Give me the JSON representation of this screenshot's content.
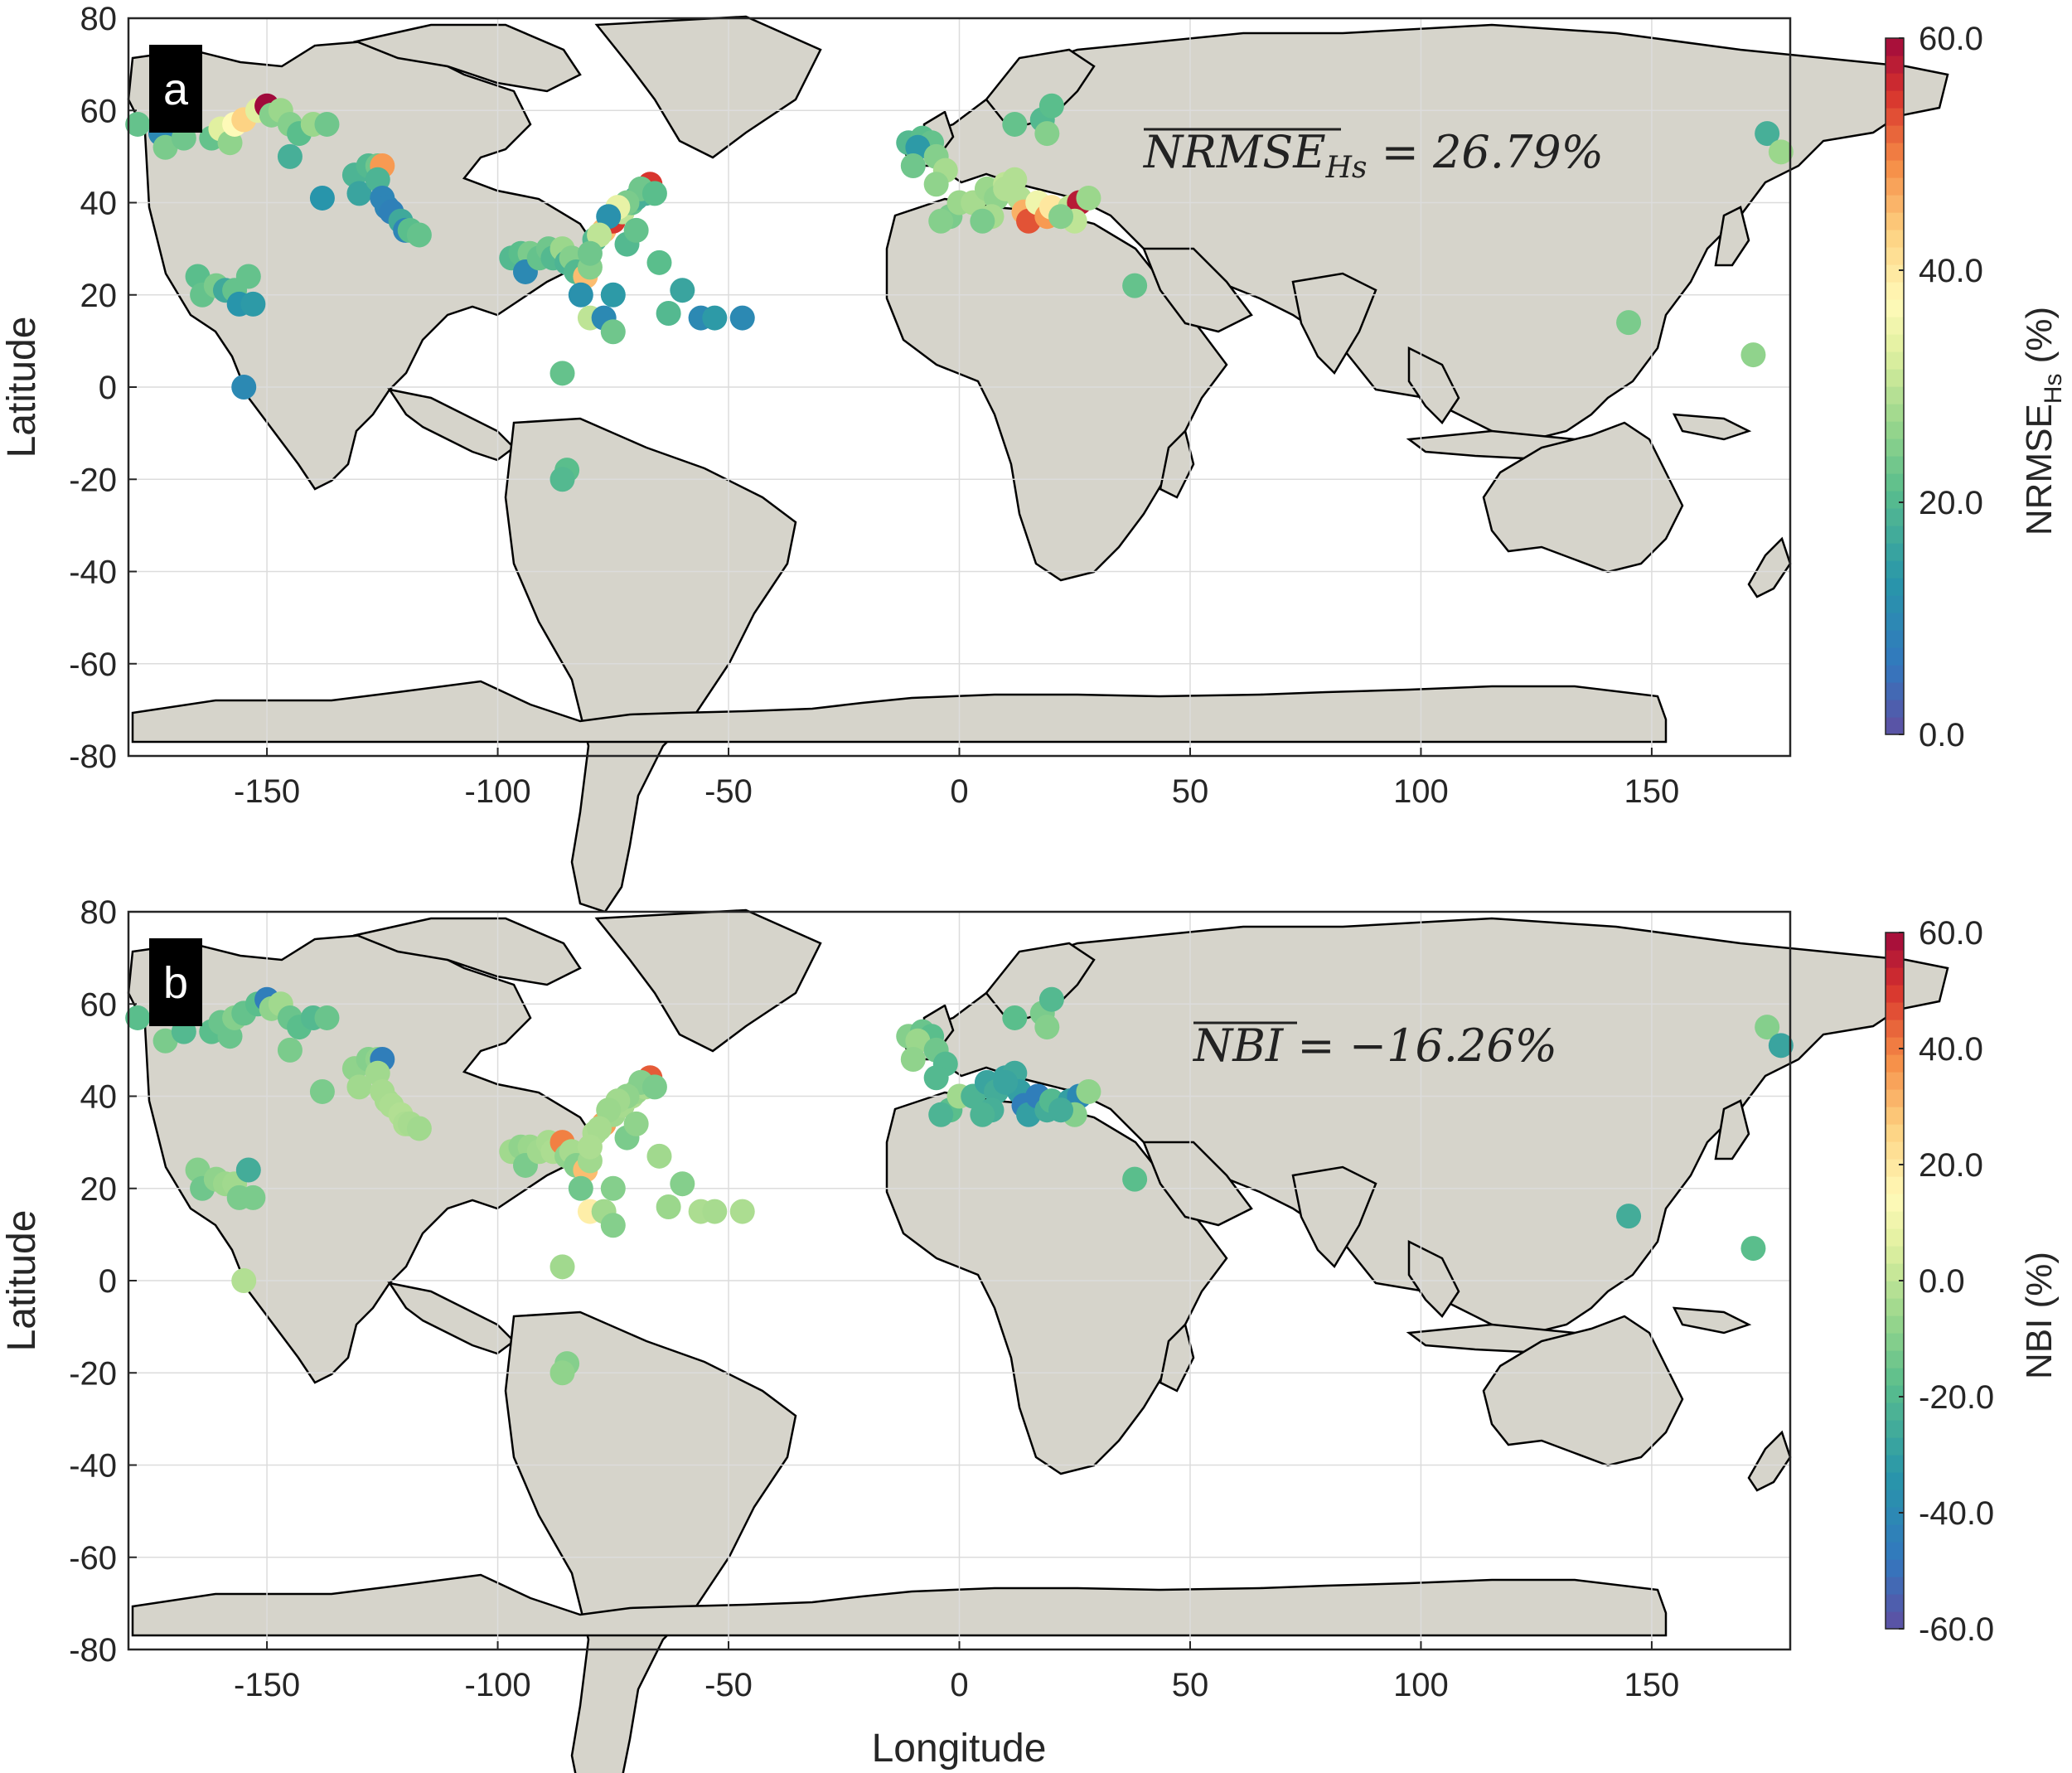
{
  "colors": {
    "land": "#d6d4cb",
    "coast": "#000000",
    "grid": "#dcdcdc",
    "axis": "#262626",
    "label_box": "#000000"
  },
  "axes": {
    "xlabel": "Longitude",
    "ylabel": "Latitude",
    "xlim": [
      -180,
      180
    ],
    "ylim": [
      -80,
      80
    ],
    "xticks": [
      -150,
      -100,
      -50,
      0,
      50,
      100,
      150
    ],
    "yticks": [
      -80,
      -60,
      -40,
      -20,
      0,
      20,
      40,
      60,
      80
    ]
  },
  "panels": [
    {
      "letter": "a",
      "stat_text": "NRMSE",
      "stat_sub": "Hs",
      "stat_value": " = 26.79%",
      "colorbar": {
        "label": "NRMSE",
        "label_sub": "Hs",
        "label_unit": " (%)",
        "ticks": [
          "60.0",
          "40.0",
          "20.0",
          "0.0"
        ],
        "min": 0,
        "max": 60
      },
      "points": [
        [
          -178,
          57,
          22
        ],
        [
          -173,
          55,
          10
        ],
        [
          -172,
          52,
          24
        ],
        [
          -168,
          54,
          23
        ],
        [
          -162,
          54,
          22
        ],
        [
          -160,
          56,
          33
        ],
        [
          -158,
          53,
          26
        ],
        [
          -157,
          57,
          37
        ],
        [
          -155,
          58,
          43
        ],
        [
          -152,
          60,
          33
        ],
        [
          -150,
          61,
          60
        ],
        [
          -149,
          59,
          25
        ],
        [
          -147,
          60,
          27
        ],
        [
          -145,
          57,
          25
        ],
        [
          -143,
          55,
          21
        ],
        [
          -140,
          57,
          27
        ],
        [
          -137,
          57,
          23
        ],
        [
          -145,
          50,
          18
        ],
        [
          -138,
          41,
          13
        ],
        [
          -131,
          46,
          19
        ],
        [
          -130,
          42,
          16
        ],
        [
          -128,
          48,
          20
        ],
        [
          -126,
          48,
          23
        ],
        [
          -125,
          48,
          48
        ],
        [
          -126,
          45,
          19
        ],
        [
          -125,
          41,
          9
        ],
        [
          -124,
          39,
          9
        ],
        [
          -123,
          38,
          8
        ],
        [
          -121,
          36,
          17
        ],
        [
          -120,
          34,
          9
        ],
        [
          -119,
          34,
          21
        ],
        [
          -117,
          33,
          22
        ],
        [
          -165,
          24,
          21
        ],
        [
          -164,
          20,
          22
        ],
        [
          -161,
          22,
          24
        ],
        [
          -159,
          21,
          17
        ],
        [
          -157,
          21,
          22
        ],
        [
          -156,
          18,
          13
        ],
        [
          -154,
          24,
          22
        ],
        [
          -153,
          18,
          14
        ],
        [
          -155,
          0,
          10
        ],
        [
          -97,
          28,
          20
        ],
        [
          -95,
          29,
          21
        ],
        [
          -93,
          29,
          24
        ],
        [
          -94,
          25,
          10
        ],
        [
          -91,
          28,
          22
        ],
        [
          -89,
          30,
          23
        ],
        [
          -88,
          28,
          20
        ],
        [
          -86,
          30,
          27
        ],
        [
          -85,
          27,
          19
        ],
        [
          -84,
          28,
          25
        ],
        [
          -83,
          25,
          20
        ],
        [
          -81,
          24,
          45
        ],
        [
          -80,
          26,
          25
        ],
        [
          -82,
          20,
          12
        ],
        [
          -80,
          15,
          30
        ],
        [
          -77,
          15,
          10
        ],
        [
          -75,
          20,
          14
        ],
        [
          -79,
          32,
          20
        ],
        [
          -77,
          34,
          45
        ],
        [
          -75,
          36,
          55
        ],
        [
          -73,
          38,
          30
        ],
        [
          -71,
          40,
          22
        ],
        [
          -70,
          41,
          18
        ],
        [
          -68,
          42,
          18
        ],
        [
          -67,
          44,
          55
        ],
        [
          -69,
          43,
          23
        ],
        [
          -72,
          40,
          24
        ],
        [
          -74,
          39,
          34
        ],
        [
          -76,
          37,
          12
        ],
        [
          -78,
          33,
          30
        ],
        [
          -80,
          29,
          23
        ],
        [
          -72,
          31,
          20
        ],
        [
          -70,
          34,
          22
        ],
        [
          -66,
          42,
          21
        ],
        [
          -65,
          27,
          21
        ],
        [
          -63,
          16,
          20
        ],
        [
          -60,
          21,
          16
        ],
        [
          -56,
          15,
          10
        ],
        [
          -53,
          15,
          14
        ],
        [
          -47,
          15,
          10
        ],
        [
          -86,
          3,
          22
        ],
        [
          -85,
          -18,
          21
        ],
        [
          -86,
          -20,
          20
        ],
        [
          -75,
          12,
          23
        ],
        [
          -11,
          53,
          20
        ],
        [
          -8,
          54,
          21
        ],
        [
          -6,
          53,
          22
        ],
        [
          -9,
          52,
          14
        ],
        [
          -5,
          50,
          25
        ],
        [
          -3,
          47,
          28
        ],
        [
          -10,
          48,
          23
        ],
        [
          -5,
          44,
          26
        ],
        [
          -2,
          37,
          24
        ],
        [
          -4,
          36,
          25
        ],
        [
          0,
          40,
          27
        ],
        [
          3,
          40,
          28
        ],
        [
          6,
          43,
          27
        ],
        [
          8,
          41,
          26
        ],
        [
          10,
          44,
          30
        ],
        [
          12,
          45,
          29
        ],
        [
          13,
          41,
          29
        ],
        [
          14,
          38,
          46
        ],
        [
          15,
          36,
          53
        ],
        [
          17,
          40,
          35
        ],
        [
          19,
          37,
          48
        ],
        [
          20,
          39,
          40
        ],
        [
          24,
          39,
          30
        ],
        [
          26,
          40,
          58
        ],
        [
          25,
          36,
          30
        ],
        [
          28,
          41,
          27
        ],
        [
          22,
          37,
          25
        ],
        [
          10,
          43,
          29
        ],
        [
          7,
          37,
          28
        ],
        [
          5,
          36,
          24
        ],
        [
          12,
          57,
          22
        ],
        [
          18,
          58,
          20
        ],
        [
          20,
          61,
          21
        ],
        [
          19,
          55,
          25
        ],
        [
          38,
          22,
          22
        ],
        [
          145,
          14,
          24
        ],
        [
          172,
          7,
          26
        ],
        [
          175,
          55,
          18
        ],
        [
          178,
          51,
          27
        ]
      ]
    },
    {
      "letter": "b",
      "stat_text": "NBI",
      "stat_sub": "",
      "stat_value": " = −16.26%",
      "colorbar": {
        "label": "NBI (%)",
        "label_sub": "",
        "label_unit": "",
        "ticks": [
          "60.0",
          "40.0",
          "20.0",
          "0.0",
          "-20.0",
          "-40.0",
          "-60.0"
        ],
        "min": -60,
        "max": 60
      },
      "points": [
        [
          -178,
          57,
          -18
        ],
        [
          -172,
          52,
          -12
        ],
        [
          -168,
          54,
          -20
        ],
        [
          -162,
          54,
          -18
        ],
        [
          -160,
          56,
          -15
        ],
        [
          -158,
          53,
          -15
        ],
        [
          -157,
          57,
          -10
        ],
        [
          -155,
          58,
          -16
        ],
        [
          -152,
          60,
          -18
        ],
        [
          -150,
          61,
          -45
        ],
        [
          -149,
          59,
          -8
        ],
        [
          -147,
          60,
          -5
        ],
        [
          -145,
          57,
          -15
        ],
        [
          -143,
          55,
          -18
        ],
        [
          -140,
          57,
          -20
        ],
        [
          -137,
          57,
          -15
        ],
        [
          -145,
          50,
          -12
        ],
        [
          -138,
          41,
          -12
        ],
        [
          -131,
          46,
          -8
        ],
        [
          -130,
          42,
          -5
        ],
        [
          -128,
          48,
          -10
        ],
        [
          -126,
          48,
          -8
        ],
        [
          -125,
          48,
          -45
        ],
        [
          -126,
          45,
          -5
        ],
        [
          -125,
          41,
          -4
        ],
        [
          -124,
          39,
          -4
        ],
        [
          -123,
          38,
          -3
        ],
        [
          -121,
          36,
          -2
        ],
        [
          -120,
          34,
          -3
        ],
        [
          -119,
          34,
          -4
        ],
        [
          -117,
          33,
          -5
        ],
        [
          -165,
          24,
          -10
        ],
        [
          -164,
          20,
          -14
        ],
        [
          -161,
          22,
          -8
        ],
        [
          -159,
          21,
          -6
        ],
        [
          -157,
          21,
          -5
        ],
        [
          -156,
          18,
          -12
        ],
        [
          -154,
          24,
          -25
        ],
        [
          -153,
          18,
          -12
        ],
        [
          -155,
          0,
          -2
        ],
        [
          -97,
          28,
          -5
        ],
        [
          -95,
          29,
          -8
        ],
        [
          -93,
          29,
          -6
        ],
        [
          -94,
          25,
          -12
        ],
        [
          -91,
          28,
          -5
        ],
        [
          -89,
          30,
          -4
        ],
        [
          -88,
          28,
          -3
        ],
        [
          -86,
          30,
          40
        ],
        [
          -85,
          27,
          -8
        ],
        [
          -84,
          28,
          -4
        ],
        [
          -83,
          25,
          -10
        ],
        [
          -81,
          24,
          30
        ],
        [
          -80,
          26,
          -5
        ],
        [
          -82,
          20,
          -14
        ],
        [
          -80,
          15,
          18
        ],
        [
          -77,
          15,
          -5
        ],
        [
          -75,
          20,
          -10
        ],
        [
          -79,
          32,
          -3
        ],
        [
          -77,
          34,
          35
        ],
        [
          -75,
          36,
          -5
        ],
        [
          -73,
          38,
          -4
        ],
        [
          -71,
          40,
          -3
        ],
        [
          -70,
          41,
          -6
        ],
        [
          -68,
          42,
          -4
        ],
        [
          -67,
          44,
          45
        ],
        [
          -69,
          43,
          -10
        ],
        [
          -72,
          40,
          -8
        ],
        [
          -74,
          39,
          -5
        ],
        [
          -76,
          37,
          -6
        ],
        [
          -78,
          33,
          -4
        ],
        [
          -80,
          29,
          -3
        ],
        [
          -72,
          31,
          -12
        ],
        [
          -70,
          34,
          -8
        ],
        [
          -66,
          42,
          -12
        ],
        [
          -65,
          27,
          -5
        ],
        [
          -63,
          16,
          -6
        ],
        [
          -60,
          21,
          -10
        ],
        [
          -56,
          15,
          -3
        ],
        [
          -53,
          15,
          -4
        ],
        [
          -47,
          15,
          -3
        ],
        [
          -86,
          3,
          -5
        ],
        [
          -85,
          -18,
          -10
        ],
        [
          -86,
          -20,
          -8
        ],
        [
          -75,
          12,
          -10
        ],
        [
          -11,
          53,
          -10
        ],
        [
          -8,
          54,
          -15
        ],
        [
          -6,
          53,
          -18
        ],
        [
          -9,
          52,
          -6
        ],
        [
          -5,
          50,
          -14
        ],
        [
          -3,
          47,
          -20
        ],
        [
          -10,
          48,
          -8
        ],
        [
          -5,
          44,
          -20
        ],
        [
          -2,
          37,
          -18
        ],
        [
          -4,
          36,
          -22
        ],
        [
          0,
          40,
          -5
        ],
        [
          3,
          40,
          -22
        ],
        [
          6,
          43,
          -28
        ],
        [
          8,
          41,
          -25
        ],
        [
          10,
          44,
          -28
        ],
        [
          12,
          45,
          -26
        ],
        [
          13,
          41,
          -30
        ],
        [
          14,
          38,
          -45
        ],
        [
          15,
          36,
          -30
        ],
        [
          17,
          40,
          -45
        ],
        [
          19,
          37,
          -25
        ],
        [
          20,
          39,
          -20
        ],
        [
          24,
          39,
          -30
        ],
        [
          26,
          40,
          -40
        ],
        [
          25,
          36,
          -10
        ],
        [
          28,
          41,
          -8
        ],
        [
          22,
          37,
          -25
        ],
        [
          10,
          43,
          -28
        ],
        [
          7,
          37,
          -24
        ],
        [
          5,
          36,
          -22
        ],
        [
          12,
          57,
          -18
        ],
        [
          18,
          58,
          -12
        ],
        [
          20,
          61,
          -20
        ],
        [
          19,
          55,
          -10
        ],
        [
          38,
          22,
          -18
        ],
        [
          145,
          14,
          -25
        ],
        [
          172,
          7,
          -18
        ],
        [
          175,
          55,
          -10
        ],
        [
          178,
          51,
          -28
        ]
      ]
    }
  ]
}
